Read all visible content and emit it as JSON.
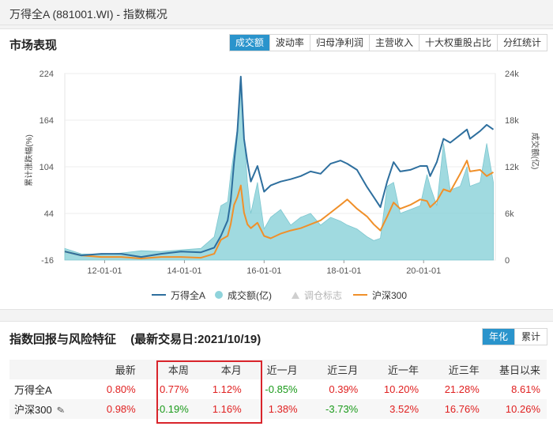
{
  "window": {
    "title": "万得全A (881001.WI) - 指数概况"
  },
  "market": {
    "title": "市场表现",
    "tabs": [
      "成交额",
      "波动率",
      "归母净利润",
      "主营收入",
      "十大权重股占比",
      "分红统计"
    ],
    "active_tab": 0
  },
  "chart_data": {
    "type": "line",
    "x_tick_labels": [
      "12-01-01",
      "14-01-01",
      "16-01-01",
      "18-01-01",
      "20-01-01"
    ],
    "left_axis": {
      "label": "累计涨跌幅(%)",
      "ticks": [
        "224",
        "164",
        "104",
        "44",
        "-16"
      ],
      "range": [
        -16,
        224
      ]
    },
    "right_axis": {
      "label": "成交额(亿)",
      "ticks": [
        "24k",
        "18k",
        "12k",
        "6k",
        "0"
      ],
      "range": [
        0,
        24000
      ]
    },
    "time_range": [
      "2011-01-01",
      "2021-10-19"
    ],
    "series": [
      {
        "name": "万得全A",
        "color": "#2e6f9e",
        "axis": "left",
        "kind": "line",
        "points": [
          [
            "2011-01",
            -5
          ],
          [
            "2011-06",
            -10
          ],
          [
            "2011-12",
            -8
          ],
          [
            "2012-06",
            -8
          ],
          [
            "2012-12",
            -12
          ],
          [
            "2013-06",
            -8
          ],
          [
            "2013-12",
            -5
          ],
          [
            "2014-06",
            -6
          ],
          [
            "2014-10",
            0
          ],
          [
            "2014-12",
            15
          ],
          [
            "2015-02",
            35
          ],
          [
            "2015-03",
            60
          ],
          [
            "2015-04",
            110
          ],
          [
            "2015-05",
            150
          ],
          [
            "2015-06",
            220
          ],
          [
            "2015-07",
            140
          ],
          [
            "2015-08",
            110
          ],
          [
            "2015-09",
            85
          ],
          [
            "2015-11",
            105
          ],
          [
            "2016-01",
            72
          ],
          [
            "2016-03",
            80
          ],
          [
            "2016-06",
            85
          ],
          [
            "2016-09",
            88
          ],
          [
            "2016-12",
            92
          ],
          [
            "2017-03",
            98
          ],
          [
            "2017-06",
            95
          ],
          [
            "2017-09",
            108
          ],
          [
            "2017-12",
            112
          ],
          [
            "2018-02",
            108
          ],
          [
            "2018-05",
            100
          ],
          [
            "2018-08",
            78
          ],
          [
            "2018-10",
            65
          ],
          [
            "2018-12",
            52
          ],
          [
            "2019-02",
            85
          ],
          [
            "2019-04",
            110
          ],
          [
            "2019-06",
            98
          ],
          [
            "2019-09",
            100
          ],
          [
            "2019-12",
            105
          ],
          [
            "2020-02",
            105
          ],
          [
            "2020-03",
            92
          ],
          [
            "2020-05",
            110
          ],
          [
            "2020-07",
            140
          ],
          [
            "2020-09",
            135
          ],
          [
            "2020-12",
            145
          ],
          [
            "2021-02",
            152
          ],
          [
            "2021-03",
            140
          ],
          [
            "2021-06",
            150
          ],
          [
            "2021-08",
            158
          ],
          [
            "2021-10",
            152
          ]
        ]
      },
      {
        "name": "成交额(亿)",
        "color": "#8fd3db",
        "axis": "right",
        "kind": "area",
        "points": [
          [
            "2011-01",
            1500
          ],
          [
            "2011-06",
            800
          ],
          [
            "2011-12",
            700
          ],
          [
            "2012-06",
            900
          ],
          [
            "2012-12",
            1200
          ],
          [
            "2013-06",
            1100
          ],
          [
            "2013-12",
            1300
          ],
          [
            "2014-06",
            1500
          ],
          [
            "2014-10",
            3000
          ],
          [
            "2014-12",
            7000
          ],
          [
            "2015-02",
            7500
          ],
          [
            "2015-03",
            11000
          ],
          [
            "2015-04",
            14000
          ],
          [
            "2015-05",
            17000
          ],
          [
            "2015-06",
            22000
          ],
          [
            "2015-07",
            16000
          ],
          [
            "2015-08",
            10000
          ],
          [
            "2015-09",
            6000
          ],
          [
            "2015-11",
            10000
          ],
          [
            "2016-01",
            4000
          ],
          [
            "2016-03",
            5500
          ],
          [
            "2016-06",
            6500
          ],
          [
            "2016-09",
            4500
          ],
          [
            "2016-12",
            5500
          ],
          [
            "2017-03",
            6000
          ],
          [
            "2017-06",
            4500
          ],
          [
            "2017-09",
            5500
          ],
          [
            "2017-12",
            5000
          ],
          [
            "2018-02",
            4500
          ],
          [
            "2018-05",
            4000
          ],
          [
            "2018-08",
            3000
          ],
          [
            "2018-10",
            2500
          ],
          [
            "2018-12",
            2800
          ],
          [
            "2019-02",
            9500
          ],
          [
            "2019-04",
            10000
          ],
          [
            "2019-06",
            6000
          ],
          [
            "2019-09",
            6500
          ],
          [
            "2019-12",
            7000
          ],
          [
            "2020-02",
            11000
          ],
          [
            "2020-03",
            9500
          ],
          [
            "2020-05",
            7000
          ],
          [
            "2020-07",
            15000
          ],
          [
            "2020-09",
            9000
          ],
          [
            "2020-12",
            9500
          ],
          [
            "2021-02",
            12000
          ],
          [
            "2021-03",
            9500
          ],
          [
            "2021-06",
            10000
          ],
          [
            "2021-08",
            15000
          ],
          [
            "2021-10",
            10000
          ]
        ]
      },
      {
        "name": "调仓标志",
        "color": "#cfcfcf",
        "kind": "marker",
        "disabled": true,
        "points": []
      },
      {
        "name": "沪深300",
        "color": "#f0902a",
        "axis": "left",
        "kind": "line",
        "points": [
          [
            "2011-01",
            -5
          ],
          [
            "2011-06",
            -10
          ],
          [
            "2011-12",
            -12
          ],
          [
            "2012-06",
            -12
          ],
          [
            "2012-12",
            -14
          ],
          [
            "2013-06",
            -12
          ],
          [
            "2013-12",
            -12
          ],
          [
            "2014-06",
            -13
          ],
          [
            "2014-10",
            -8
          ],
          [
            "2014-12",
            10
          ],
          [
            "2015-02",
            15
          ],
          [
            "2015-03",
            30
          ],
          [
            "2015-04",
            55
          ],
          [
            "2015-05",
            65
          ],
          [
            "2015-06",
            80
          ],
          [
            "2015-07",
            45
          ],
          [
            "2015-08",
            30
          ],
          [
            "2015-09",
            25
          ],
          [
            "2015-11",
            32
          ],
          [
            "2016-01",
            15
          ],
          [
            "2016-03",
            12
          ],
          [
            "2016-06",
            18
          ],
          [
            "2016-09",
            22
          ],
          [
            "2016-12",
            25
          ],
          [
            "2017-03",
            30
          ],
          [
            "2017-06",
            35
          ],
          [
            "2017-09",
            45
          ],
          [
            "2017-12",
            55
          ],
          [
            "2018-02",
            62
          ],
          [
            "2018-05",
            50
          ],
          [
            "2018-08",
            40
          ],
          [
            "2018-10",
            30
          ],
          [
            "2018-12",
            22
          ],
          [
            "2019-02",
            40
          ],
          [
            "2019-04",
            58
          ],
          [
            "2019-06",
            50
          ],
          [
            "2019-09",
            55
          ],
          [
            "2019-12",
            62
          ],
          [
            "2020-02",
            60
          ],
          [
            "2020-03",
            52
          ],
          [
            "2020-05",
            60
          ],
          [
            "2020-07",
            75
          ],
          [
            "2020-09",
            72
          ],
          [
            "2020-12",
            95
          ],
          [
            "2021-02",
            112
          ],
          [
            "2021-03",
            98
          ],
          [
            "2021-06",
            100
          ],
          [
            "2021-08",
            92
          ],
          [
            "2021-10",
            97
          ]
        ]
      }
    ]
  },
  "returns": {
    "title": "指数回报与风险特征",
    "subtitle": "(最新交易日:2021/10/19)",
    "tabs": [
      "年化",
      "累计"
    ],
    "active_tab": 0,
    "headers": [
      "",
      "最新",
      "本周",
      "本月",
      "近一月",
      "近三月",
      "近一年",
      "近三年",
      "基日以来"
    ],
    "rows": [
      {
        "name": "万得全A",
        "values": [
          "0.80%",
          "0.77%",
          "1.12%",
          "-0.85%",
          "0.39%",
          "10.20%",
          "21.28%",
          "8.61%"
        ],
        "signs": [
          "pos",
          "pos",
          "pos",
          "neg",
          "pos",
          "pos",
          "pos",
          "pos"
        ]
      },
      {
        "name": "沪深300",
        "values": [
          "0.98%",
          "-0.19%",
          "1.16%",
          "1.38%",
          "-3.73%",
          "3.52%",
          "16.76%",
          "10.26%"
        ],
        "signs": [
          "pos",
          "neg",
          "pos",
          "pos",
          "neg",
          "pos",
          "pos",
          "pos"
        ]
      }
    ],
    "colors": {
      "positive": "#e02020",
      "negative": "#1a9a1a"
    }
  }
}
